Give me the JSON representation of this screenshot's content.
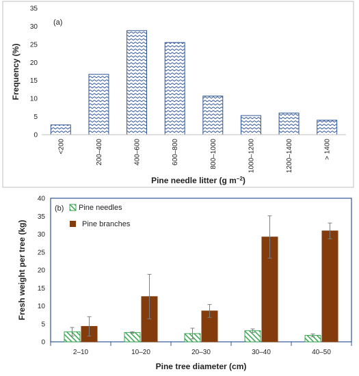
{
  "chart_data": [
    {
      "type": "bar",
      "panel_label": "(a)",
      "categories": [
        "<200",
        "200–400",
        "400–600",
        "600–800",
        "800–1000",
        "1000–1200",
        "1200–1400",
        "> 1400"
      ],
      "values": [
        2.7,
        16.7,
        28.8,
        25.5,
        10.7,
        5.3,
        6.0,
        4.0
      ],
      "xlabel": "Pine needle litter (g m",
      "xlabel_sup": "−2",
      "xlabel_end": ")",
      "ylabel": "Frequency (%)",
      "ylim": [
        0,
        35
      ],
      "yticks": [
        0,
        5,
        10,
        15,
        20,
        25,
        30,
        35
      ],
      "grid": false,
      "colors": {
        "bar_stroke": "#2e5597",
        "pattern": "#2e5597",
        "frame": "#bfbfbf"
      }
    },
    {
      "type": "bar",
      "panel_label": "(b)",
      "categories": [
        "2–10",
        "10–20",
        "20–30",
        "30–40",
        "40–50"
      ],
      "series": [
        {
          "name": "Pine needles",
          "values": [
            2.8,
            2.6,
            2.3,
            3.1,
            1.8
          ],
          "errors": [
            1.2,
            0.2,
            1.5,
            0.5,
            0.4
          ]
        },
        {
          "name": "Pine branches",
          "values": [
            4.3,
            12.6,
            8.6,
            29.2,
            30.9
          ],
          "errors": [
            2.7,
            6.2,
            1.8,
            5.9,
            2.2
          ]
        }
      ],
      "xlabel": "Pine tree diameter (cm)",
      "ylabel": "Fresh weight per tree (kg)",
      "ylim": [
        0,
        40
      ],
      "yticks": [
        0,
        5,
        10,
        15,
        20,
        25,
        30,
        35,
        40
      ],
      "legend": "top-left",
      "grid": false,
      "colors": {
        "needles": "#3aa551",
        "branches": "#843c0c",
        "frame": "#2e5597",
        "error": "#7f7f7f"
      }
    }
  ]
}
